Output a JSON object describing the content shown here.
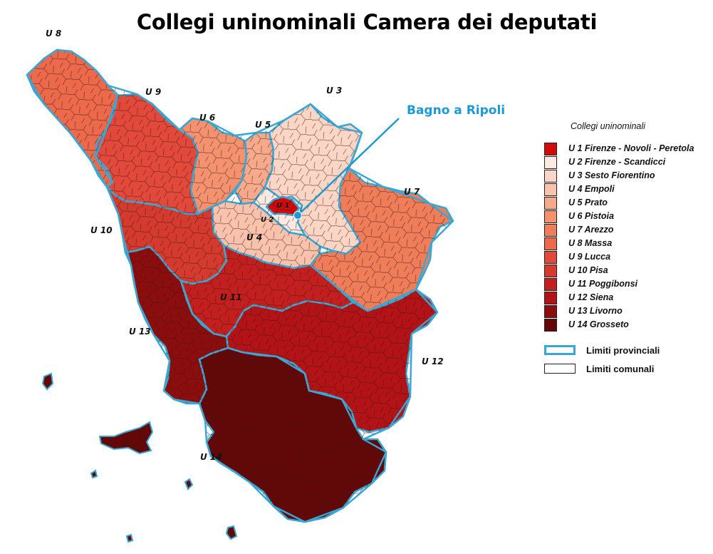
{
  "title": "Collegi uninominali Camera dei deputati",
  "callout": {
    "label": "Bagno a Ripoli",
    "color": "#1b9ad6"
  },
  "map_labels": {
    "u1": "U 1",
    "u2": "U 2",
    "u3": "U 3",
    "u4": "U 4",
    "u5": "U 5",
    "u6": "U 6",
    "u7": "U 7",
    "u8": "U 8",
    "u9": "U 9",
    "u10": "U 10",
    "u11": "U 11",
    "u12": "U 12",
    "u13": "U 13",
    "u14": "U 14"
  },
  "legend": {
    "title": "Collegi uninominali",
    "items": [
      {
        "label": "U 1  Firenze - Novoli - Peretola",
        "color": "#d20a0a"
      },
      {
        "label": "U 2  Firenze - Scandicci",
        "color": "#fde9e1"
      },
      {
        "label": "U 3  Sesto Fiorentino",
        "color": "#fbd6c6"
      },
      {
        "label": "U 4  Empoli",
        "color": "#f9c2ad"
      },
      {
        "label": "U 5  Prato",
        "color": "#f7a98c"
      },
      {
        "label": "U 6  Pistoia",
        "color": "#f4926f"
      },
      {
        "label": "U 7  Arezzo",
        "color": "#f07d59"
      },
      {
        "label": "U 8  Massa",
        "color": "#ec6a4b"
      },
      {
        "label": "U 9  Lucca",
        "color": "#e2493a"
      },
      {
        "label": "U 10  Pisa",
        "color": "#d53a2e"
      },
      {
        "label": "U 11  Poggibonsi",
        "color": "#c41f1f"
      },
      {
        "label": "U 12  Siena",
        "color": "#b31316"
      },
      {
        "label": "U 13  Livorno",
        "color": "#8b0d0d"
      },
      {
        "label": "U 14  Grosseto",
        "color": "#620808"
      }
    ],
    "limits": [
      {
        "label": "Limiti provinciali",
        "border_color": "#3aa6d3"
      },
      {
        "label": "Limiti comunali",
        "border_color": "#222222"
      }
    ]
  },
  "colors": {
    "province_border": "#3aa6d3",
    "comune_border": "#3a1a12"
  }
}
